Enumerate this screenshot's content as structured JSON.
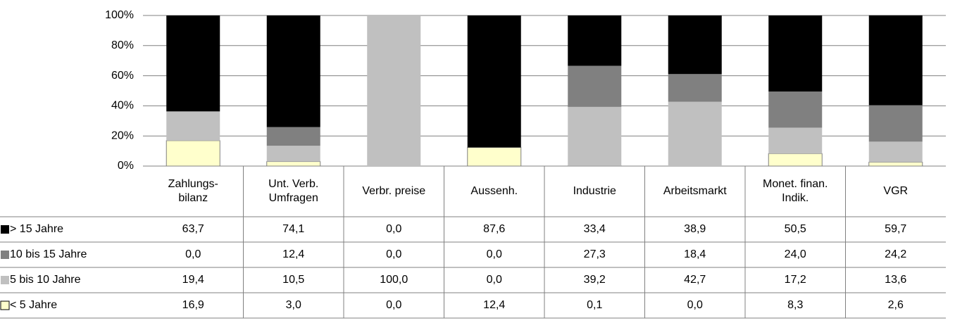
{
  "chart_data": {
    "type": "bar",
    "categories": [
      "Zahlungs-\nbilanz",
      "Unt. Verb.\nUmfragen",
      "Verbr. preise",
      "Aussenh.",
      "Industrie",
      "Arbeitsmarkt",
      "Monet. finan.\nIndik.",
      "VGR"
    ],
    "series": [
      {
        "name": "> 15 Jahre",
        "color": "#000000",
        "values": [
          63.7,
          74.1,
          0.0,
          87.6,
          33.4,
          38.9,
          50.5,
          59.7
        ],
        "value_labels": [
          "63,7",
          "74,1",
          "0,0",
          "87,6",
          "33,4",
          "38,9",
          "50,5",
          "59,7"
        ]
      },
      {
        "name": "10 bis 15 Jahre",
        "color": "#808080",
        "values": [
          0.0,
          12.4,
          0.0,
          0.0,
          27.3,
          18.4,
          24.0,
          24.2
        ],
        "value_labels": [
          "0,0",
          "12,4",
          "0,0",
          "0,0",
          "27,3",
          "18,4",
          "24,0",
          "24,2"
        ]
      },
      {
        "name": "5 bis 10 Jahre",
        "color": "#c0c0c0",
        "values": [
          19.4,
          10.5,
          100.0,
          0.0,
          39.2,
          42.7,
          17.2,
          13.6
        ],
        "value_labels": [
          "19,4",
          "10,5",
          "100,0",
          "0,0",
          "39,2",
          "42,7",
          "17,2",
          "13,6"
        ]
      },
      {
        "name": "< 5 Jahre",
        "color": "#ffffcc",
        "values": [
          16.9,
          3.0,
          0.0,
          12.4,
          0.1,
          0.0,
          8.3,
          2.6
        ],
        "value_labels": [
          "16,9",
          "3,0",
          "0,0",
          "12,4",
          "0,1",
          "0,0",
          "8,3",
          "2,6"
        ]
      }
    ],
    "stacked": true,
    "ylim": [
      0,
      100
    ],
    "yticks": [
      {
        "value": 0,
        "label": "0%"
      },
      {
        "value": 20,
        "label": "20%"
      },
      {
        "value": 40,
        "label": "40%"
      },
      {
        "value": 60,
        "label": "60%"
      },
      {
        "value": 80,
        "label": "80%"
      },
      {
        "value": 100,
        "label": "100%"
      }
    ],
    "grid": true
  }
}
